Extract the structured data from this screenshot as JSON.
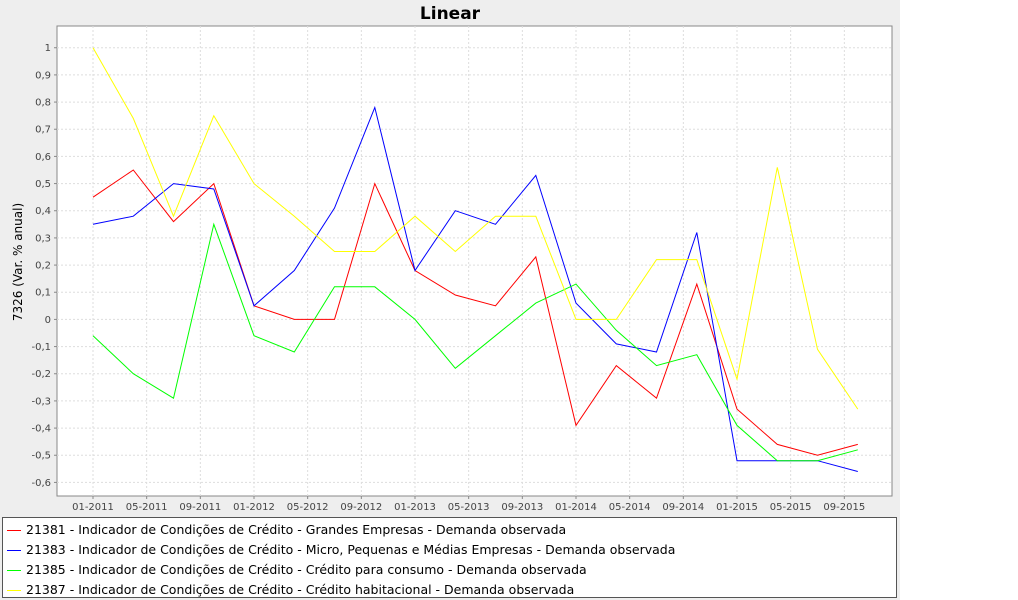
{
  "chart_data": {
    "type": "line",
    "title": "Linear",
    "xlabel": "",
    "ylabel": "7326 (Var. % anual)",
    "ylim": [
      -0.65,
      1.08
    ],
    "yticks": [
      1,
      0.9,
      0.8,
      0.7,
      0.6,
      0.5,
      0.4,
      0.3,
      0.2,
      0.1,
      0,
      -0.1,
      -0.2,
      -0.3,
      -0.4,
      -0.5,
      -0.6
    ],
    "ytick_labels": [
      "1",
      "0,9",
      "0,8",
      "0,7",
      "0,6",
      "0,5",
      "0,4",
      "0,3",
      "0,2",
      "0,1",
      "0",
      "-0,1",
      "-0,2",
      "-0,3",
      "-0,4",
      "-0,5",
      "-0,6"
    ],
    "x": [
      "01-2011",
      "04-2011",
      "07-2011",
      "10-2011",
      "01-2012",
      "04-2012",
      "07-2012",
      "10-2012",
      "01-2013",
      "04-2013",
      "07-2013",
      "10-2013",
      "01-2014",
      "04-2014",
      "07-2014",
      "10-2014",
      "01-2015",
      "04-2015",
      "07-2015",
      "10-2015"
    ],
    "xticks": [
      "01-2011",
      "05-2011",
      "09-2011",
      "01-2012",
      "05-2012",
      "09-2012",
      "01-2013",
      "05-2013",
      "09-2013",
      "01-2014",
      "05-2014",
      "09-2014",
      "01-2015",
      "05-2015",
      "09-2015"
    ],
    "grid": true,
    "legend_position": "bottom",
    "series": [
      {
        "name": "21381 - Indicador de Condições de Crédito - Grandes Empresas - Demanda observada",
        "color": "#ff0000",
        "values": [
          0.45,
          0.55,
          0.36,
          0.5,
          0.05,
          0.0,
          0.0,
          0.5,
          0.18,
          0.09,
          0.05,
          0.23,
          -0.39,
          -0.17,
          -0.29,
          0.13,
          -0.33,
          -0.46,
          -0.5,
          -0.46
        ]
      },
      {
        "name": "21383 - Indicador de Condições de Crédito - Micro, Pequenas e Médias Empresas - Demanda observada",
        "color": "#0000ff",
        "values": [
          0.35,
          0.38,
          0.5,
          0.48,
          0.05,
          0.18,
          0.41,
          0.78,
          0.18,
          0.4,
          0.35,
          0.53,
          0.06,
          -0.09,
          -0.12,
          0.32,
          -0.52,
          -0.52,
          -0.52,
          -0.56
        ]
      },
      {
        "name": "21385 - Indicador de Condições de Crédito - Crédito para consumo - Demanda observada",
        "color": "#00ff00",
        "values": [
          -0.06,
          -0.2,
          -0.29,
          0.35,
          -0.06,
          -0.12,
          0.12,
          0.12,
          0.0,
          -0.18,
          -0.06,
          0.06,
          0.13,
          -0.04,
          -0.17,
          -0.13,
          -0.39,
          -0.52,
          -0.52,
          -0.48
        ]
      },
      {
        "name": "21387 - Indicador de Condições de Crédito - Crédito habitacional - Demanda observada",
        "color": "#ffff00",
        "values": [
          1.0,
          0.74,
          0.38,
          0.75,
          0.5,
          0.38,
          0.25,
          0.25,
          0.38,
          0.25,
          0.38,
          0.38,
          0.0,
          0.0,
          0.22,
          0.22,
          -0.22,
          0.56,
          -0.11,
          -0.33
        ]
      }
    ]
  }
}
